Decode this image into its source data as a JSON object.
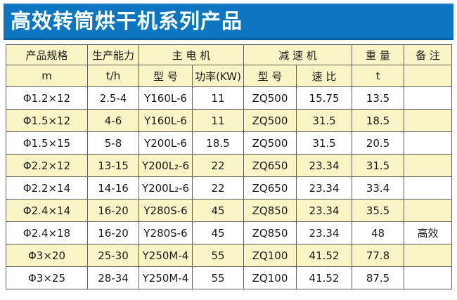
{
  "title": "高效转筒烘干机系列产品",
  "colors": {
    "title_bar": "#0d76c0",
    "row_alt": "#faf5c7",
    "border": "#5f5f5f"
  },
  "table": {
    "header_row1": [
      {
        "label": "产品规格"
      },
      {
        "label": "生产能力"
      },
      {
        "label": "主  电  机"
      },
      {
        "label": "减   速   机"
      },
      {
        "label": "重 量"
      },
      {
        "label": "备 注"
      }
    ],
    "header_row2": [
      "m",
      "t/h",
      "型 号",
      "功率(KW)",
      "型 号",
      "速 比",
      "t",
      ""
    ],
    "rows": [
      [
        "Φ1.2×12",
        "2.5-4",
        "Y160L-6",
        "11",
        "ZQ500",
        "15.75",
        "13.5",
        ""
      ],
      [
        "Φ1.5×12",
        "4-6",
        "Y160L-6",
        "11",
        "ZQ500",
        "31.5",
        "18.5",
        ""
      ],
      [
        "Φ1.5×15",
        "5-8",
        "Y200L-6",
        "18.5",
        "ZQ500",
        "31.5",
        "20.5",
        ""
      ],
      [
        "Φ2.2×12",
        "13-15",
        "Y200L₂-6",
        "22",
        "ZQ650",
        "23.34",
        "31.5",
        ""
      ],
      [
        "Φ2.2×14",
        "14-16",
        "Y200L₂-6",
        "22",
        "ZQ650",
        "23.34",
        "33.4",
        ""
      ],
      [
        "Φ2.4×14",
        "16-20",
        "Y280S-6",
        "45",
        "ZQ850",
        "23.34",
        "35.5",
        ""
      ],
      [
        "Φ2.4×18",
        "16-20",
        "Y280S-6",
        "45",
        "ZQ850",
        "23.34",
        "48",
        "高效"
      ],
      [
        "Φ3×20",
        "25-30",
        "Y250M-4",
        "55",
        "ZQ100",
        "41.52",
        "77.8",
        ""
      ],
      [
        "Φ3×25",
        "28-34",
        "Y250M-4",
        "55",
        "ZQ100",
        "41.52",
        "87.5",
        ""
      ]
    ]
  }
}
